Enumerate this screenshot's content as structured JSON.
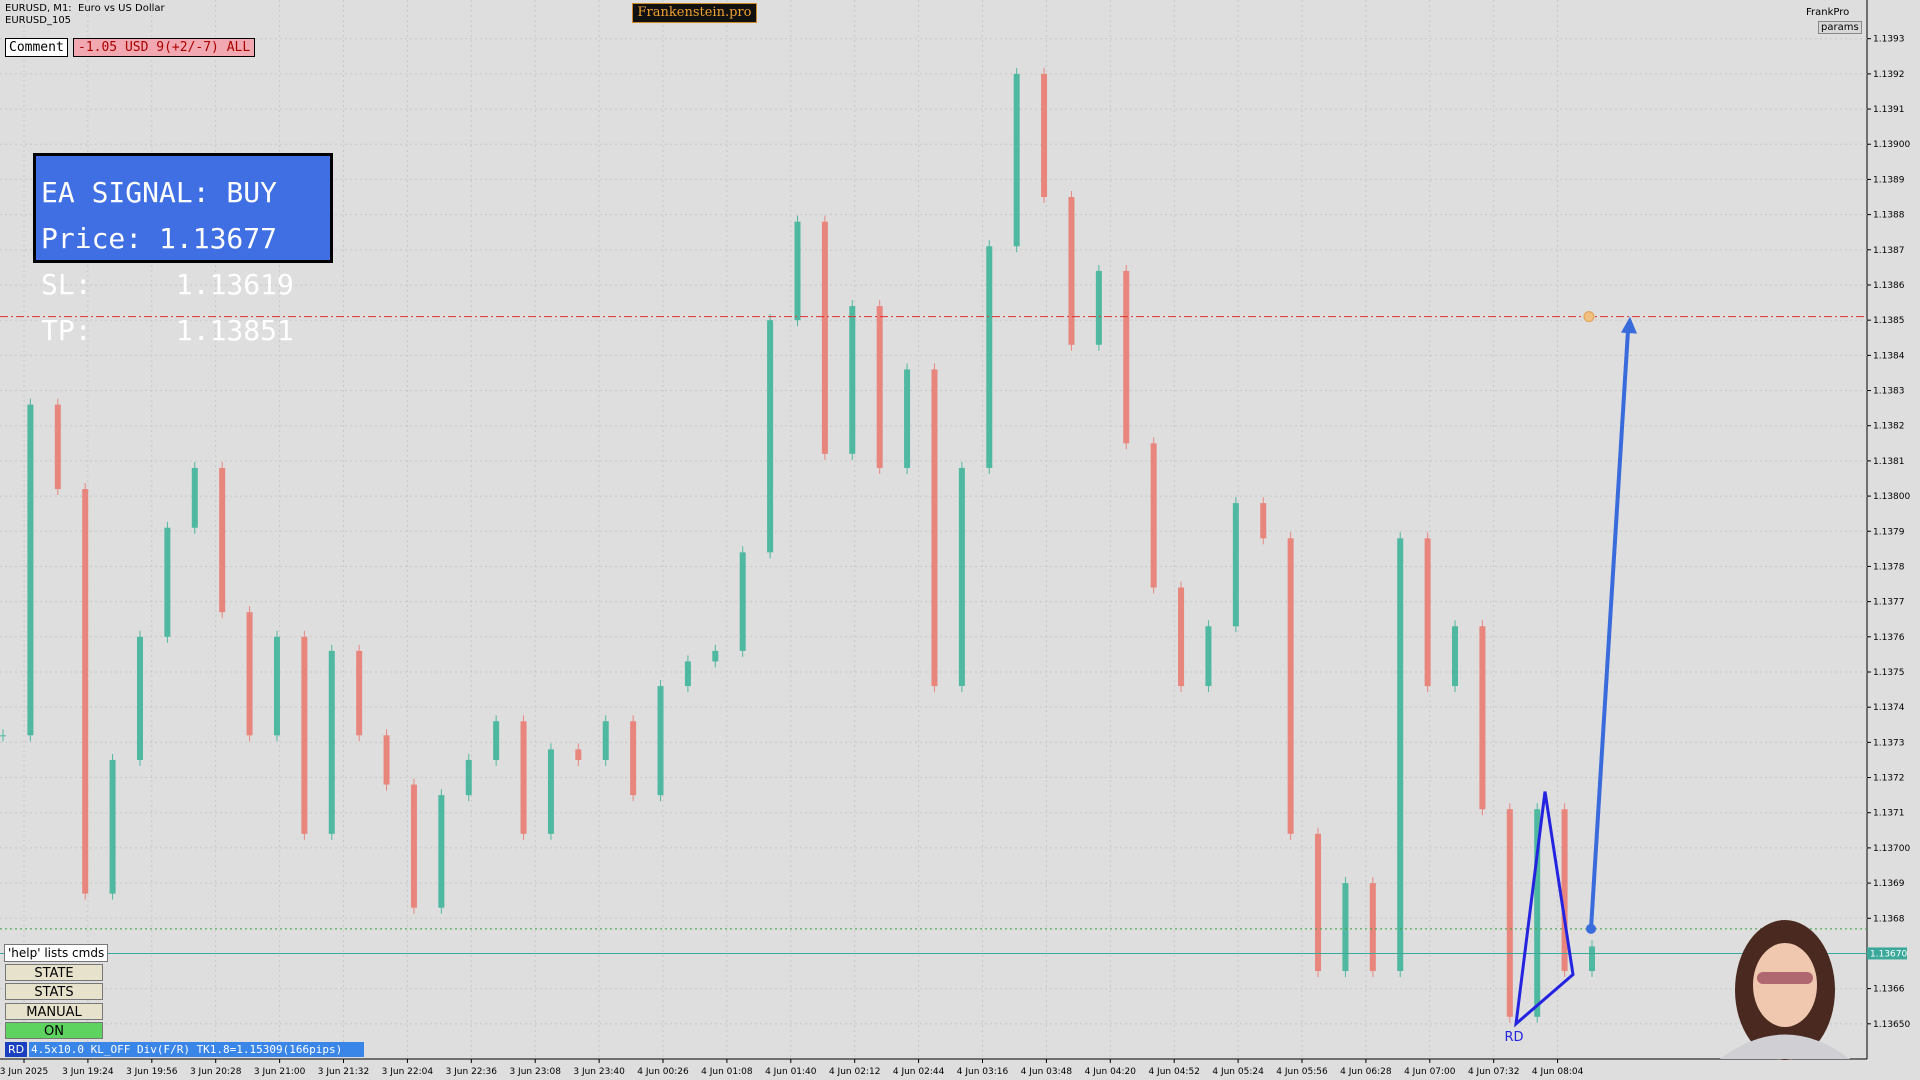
{
  "header": {
    "symbol": "EURUSD, M1:  Euro vs US Dollar",
    "account": "EURUSD_105",
    "brand": "Frankenstein.pro",
    "profile": "FrankPro",
    "params_button": "params"
  },
  "comment": {
    "label": "Comment",
    "text": "-1.05 USD 9(+2/-7) ALL"
  },
  "signal": {
    "lines": [
      "EA SIGNAL: BUY",
      "Price: 1.13677",
      "SL:     1.13619",
      "TP:     1.13851"
    ]
  },
  "chart_data": {
    "type": "candlestick",
    "closes": [
      1.13732,
      1.13826,
      1.13802,
      1.13687,
      1.13725,
      1.1376,
      1.13791,
      1.13808,
      1.13767,
      1.13732,
      1.1376,
      1.13704,
      1.13756,
      1.13732,
      1.13718,
      1.13683,
      1.13715,
      1.13725,
      1.13736,
      1.13704,
      1.13728,
      1.13725,
      1.13736,
      1.13715,
      1.13746,
      1.13753,
      1.13756,
      1.13784,
      1.1385,
      1.13878,
      1.13812,
      1.13854,
      1.13808,
      1.13836,
      1.13746,
      1.13808,
      1.13871,
      1.1392,
      1.13885,
      1.13843,
      1.13864,
      1.13815,
      1.13774,
      1.13746,
      1.13763,
      1.13798,
      1.13788,
      1.13704,
      1.13665,
      1.1369,
      1.13665,
      1.13788,
      1.13746,
      1.13763,
      1.13711,
      1.13652,
      1.13711,
      1.13665,
      1.13672
    ],
    "up_color": "#4fb8a0",
    "down_color": "#e8867e",
    "x_labels": [
      "3 Jun 2025",
      "3 Jun 19:24",
      "3 Jun 19:56",
      "3 Jun 20:28",
      "3 Jun 21:00",
      "3 Jun 21:32",
      "3 Jun 22:04",
      "3 Jun 22:36",
      "3 Jun 23:08",
      "3 Jun 23:40",
      "4 Jun 00:26",
      "4 Jun 01:08",
      "4 Jun 01:40",
      "4 Jun 02:12",
      "4 Jun 02:44",
      "4 Jun 03:16",
      "4 Jun 03:48",
      "4 Jun 04:20",
      "4 Jun 04:52",
      "4 Jun 05:24",
      "4 Jun 05:56",
      "4 Jun 06:28",
      "4 Jun 07:00",
      "4 Jun 07:32",
      "4 Jun 08:04"
    ],
    "ylim": [
      1.1364,
      1.13941
    ],
    "yticks": [
      {
        "value": 1.1365,
        "label": "1.13650"
      },
      1.1366,
      1.1367,
      1.1368,
      1.1369,
      {
        "value": 1.137,
        "label": "1.13700"
      },
      1.1371,
      1.1372,
      1.1373,
      1.1374,
      1.1375,
      1.1376,
      1.1377,
      1.1378,
      1.1379,
      {
        "value": 1.138,
        "label": "1.13800"
      },
      1.1381,
      1.1382,
      1.1383,
      1.1384,
      1.1385,
      1.1386,
      1.1387,
      1.1388,
      1.1389,
      {
        "value": 1.139,
        "label": "1.13900"
      },
      1.1391,
      1.1392,
      1.1393
    ],
    "grid": true,
    "tp_level": 1.13851,
    "ask_level": 1.13677,
    "bid_level": {
      "value": 1.1367,
      "label": "1.13670"
    },
    "pattern": {
      "label": "RD",
      "points": [
        1.1365,
        1.13716,
        1.13664
      ],
      "entry": 1.13677,
      "target": 1.13851
    }
  },
  "controls": {
    "help": "'help' lists cmds",
    "buttons": [
      "STATE",
      "STATS",
      "MANUAL",
      "ON"
    ]
  },
  "status": {
    "tag": "RD",
    "text": "4.5x10.0 KL_OFF Div(F/R) TK1.8=1.15309(166pips)"
  }
}
